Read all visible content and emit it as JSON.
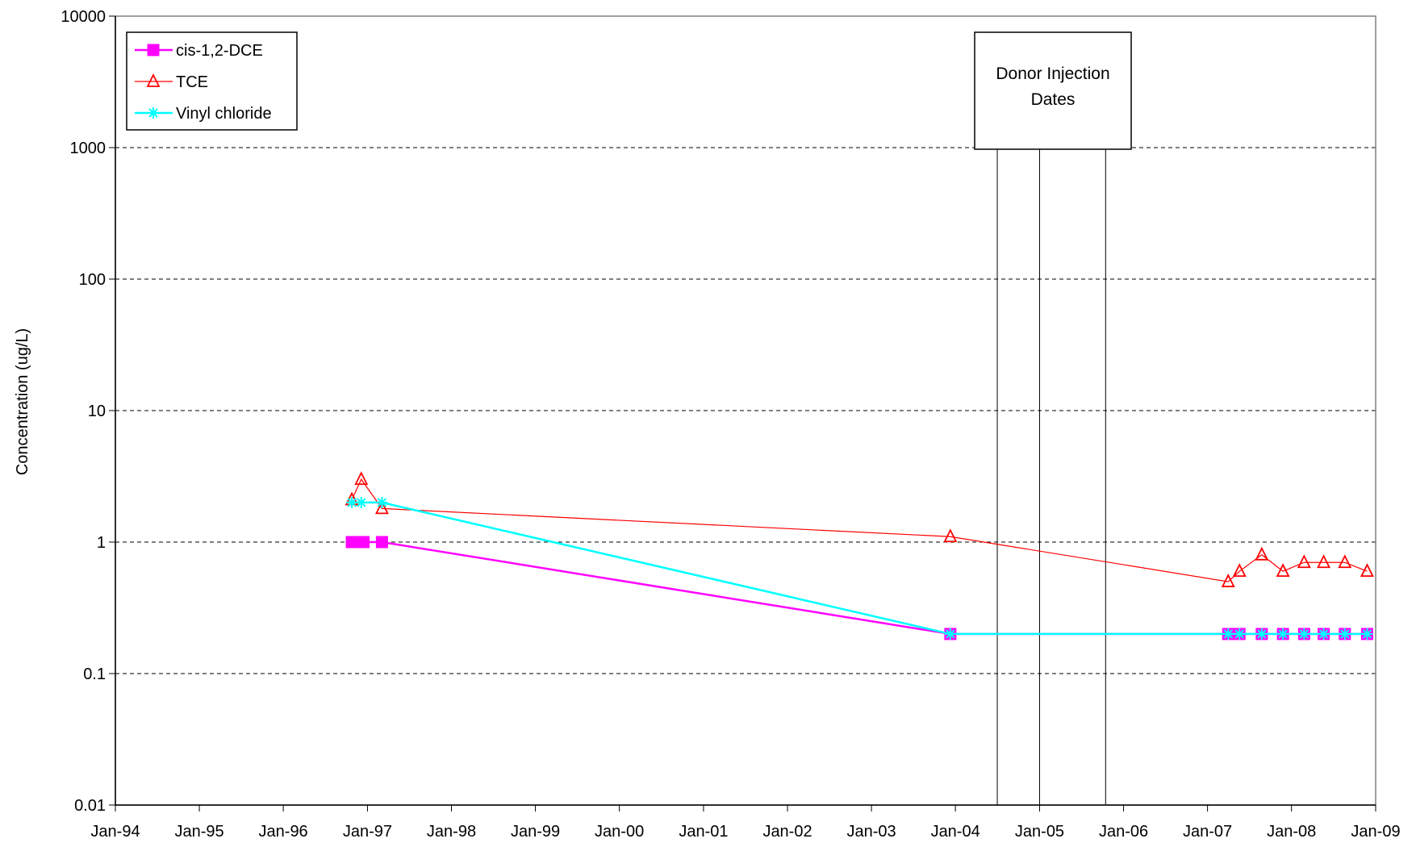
{
  "chart_data": {
    "type": "line",
    "title": "",
    "xlabel": "",
    "ylabel": "Concentration (ug/L)",
    "y_scale": "log",
    "ylim": [
      0.01,
      10000
    ],
    "y_ticks": [
      {
        "value": 0.01,
        "label": "0.01"
      },
      {
        "value": 0.1,
        "label": "0.1"
      },
      {
        "value": 1,
        "label": "1"
      },
      {
        "value": 10,
        "label": "10"
      },
      {
        "value": 100,
        "label": "100"
      },
      {
        "value": 1000,
        "label": "1000"
      },
      {
        "value": 10000,
        "label": "10000"
      }
    ],
    "xlim": [
      "1994-01-01",
      "2009-01-01"
    ],
    "x_ticks": [
      {
        "value": "1994-01-01",
        "label": "Jan-94"
      },
      {
        "value": "1995-01-01",
        "label": "Jan-95"
      },
      {
        "value": "1996-01-01",
        "label": "Jan-96"
      },
      {
        "value": "1997-01-01",
        "label": "Jan-97"
      },
      {
        "value": "1998-01-01",
        "label": "Jan-98"
      },
      {
        "value": "1999-01-01",
        "label": "Jan-99"
      },
      {
        "value": "2000-01-01",
        "label": "Jan-00"
      },
      {
        "value": "2001-01-01",
        "label": "Jan-01"
      },
      {
        "value": "2002-01-01",
        "label": "Jan-02"
      },
      {
        "value": "2003-01-01",
        "label": "Jan-03"
      },
      {
        "value": "2004-01-01",
        "label": "Jan-04"
      },
      {
        "value": "2005-01-01",
        "label": "Jan-05"
      },
      {
        "value": "2006-01-01",
        "label": "Jan-06"
      },
      {
        "value": "2007-01-01",
        "label": "Jan-07"
      },
      {
        "value": "2008-01-01",
        "label": "Jan-08"
      },
      {
        "value": "2009-01-01",
        "label": "Jan-09"
      }
    ],
    "grid": {
      "horizontal": true,
      "vertical": false
    },
    "legend": {
      "position": "top-left"
    },
    "series": [
      {
        "name": "cis-1,2-DCE",
        "color": "#FF00FF",
        "marker": "square",
        "points": [
          {
            "x": "1996-10-25",
            "y": 1
          },
          {
            "x": "1996-11-25",
            "y": 1
          },
          {
            "x": "1996-12-15",
            "y": 1
          },
          {
            "x": "1997-03-05",
            "y": 1
          },
          {
            "x": "2003-12-10",
            "y": 0.2
          },
          {
            "x": "2007-04-01",
            "y": 0.2
          },
          {
            "x": "2007-05-20",
            "y": 0.2
          },
          {
            "x": "2007-08-25",
            "y": 0.2
          },
          {
            "x": "2007-11-25",
            "y": 0.2
          },
          {
            "x": "2008-02-25",
            "y": 0.2
          },
          {
            "x": "2008-05-20",
            "y": 0.2
          },
          {
            "x": "2008-08-20",
            "y": 0.2
          },
          {
            "x": "2008-11-25",
            "y": 0.2
          }
        ]
      },
      {
        "name": "TCE",
        "color": "#FF0000",
        "marker": "triangle",
        "points": [
          {
            "x": "1996-10-25",
            "y": 2.1
          },
          {
            "x": "1996-12-05",
            "y": 3
          },
          {
            "x": "1997-03-05",
            "y": 1.8
          },
          {
            "x": "2003-12-10",
            "y": 1.1
          },
          {
            "x": "2007-04-01",
            "y": 0.5
          },
          {
            "x": "2007-05-20",
            "y": 0.6
          },
          {
            "x": "2007-08-25",
            "y": 0.8
          },
          {
            "x": "2007-11-25",
            "y": 0.6
          },
          {
            "x": "2008-02-25",
            "y": 0.7
          },
          {
            "x": "2008-05-20",
            "y": 0.7
          },
          {
            "x": "2008-08-20",
            "y": 0.7
          },
          {
            "x": "2008-11-25",
            "y": 0.6
          }
        ]
      },
      {
        "name": "Vinyl chloride",
        "color": "#00FFFF",
        "marker": "asterisk",
        "points": [
          {
            "x": "1996-10-25",
            "y": 2
          },
          {
            "x": "1996-12-05",
            "y": 2
          },
          {
            "x": "1997-03-05",
            "y": 2
          },
          {
            "x": "2003-12-10",
            "y": 0.2
          },
          {
            "x": "2007-04-01",
            "y": 0.2
          },
          {
            "x": "2007-05-20",
            "y": 0.2
          },
          {
            "x": "2007-08-25",
            "y": 0.2
          },
          {
            "x": "2007-11-25",
            "y": 0.2
          },
          {
            "x": "2008-02-25",
            "y": 0.2
          },
          {
            "x": "2008-05-20",
            "y": 0.2
          },
          {
            "x": "2008-08-20",
            "y": 0.2
          },
          {
            "x": "2008-11-25",
            "y": 0.2
          }
        ]
      }
    ],
    "annotations": [
      {
        "type": "vertical-lines",
        "label": "Donor Injection Dates",
        "x": [
          "2004-07-01",
          "2005-01-01",
          "2005-10-15"
        ]
      }
    ]
  }
}
